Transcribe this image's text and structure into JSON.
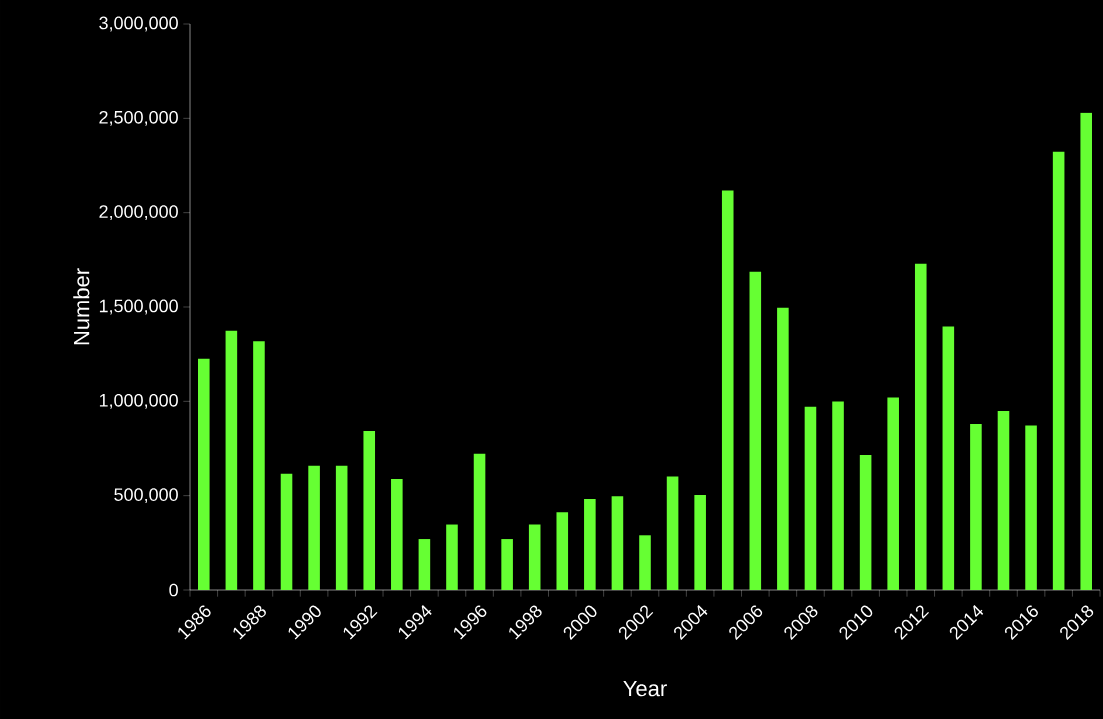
{
  "chart_data": {
    "type": "bar",
    "xlabel": "Year",
    "ylabel": "Number",
    "categories": [
      "1986",
      null,
      "1988",
      null,
      "1990",
      null,
      "1992",
      null,
      "1994",
      null,
      "1996",
      null,
      "1998",
      null,
      "2000",
      null,
      "2002",
      null,
      "2004",
      null,
      "2006",
      null,
      "2008",
      null,
      "2010",
      null,
      "2012",
      null,
      "2014",
      null,
      "2016",
      null,
      "2018"
    ],
    "values": [
      1226000,
      1374000,
      1318000,
      616000,
      659000,
      659000,
      843000,
      588000,
      270000,
      347000,
      722000,
      270000,
      347000,
      412000,
      482000,
      497000,
      290000,
      602000,
      503000,
      2118000,
      1687000,
      1496000,
      971000,
      999000,
      716000,
      1020000,
      1729000,
      1397000,
      880000,
      949000,
      872000,
      2323000,
      2530000
    ],
    "color": "#66ff33",
    "yticks": [
      0,
      {
        "value": 500000,
        "label": "500,000"
      },
      {
        "value": 1000000,
        "label": "1,000,000"
      },
      {
        "value": 1500000,
        "label": "1,500,000"
      },
      {
        "value": 2000000,
        "label": "2,000,000"
      },
      {
        "value": 2500000,
        "label": "2,500,000"
      },
      {
        "value": 3000000,
        "label": "3,000,000"
      }
    ],
    "ylim": [
      0,
      3000000
    ]
  }
}
